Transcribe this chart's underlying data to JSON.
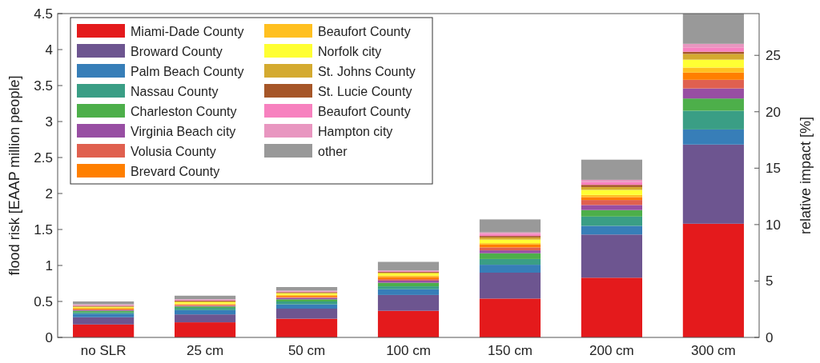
{
  "chart_data": {
    "type": "bar",
    "stacked": true,
    "ylabel": "flood risk [EAAP million people]",
    "y2label": "relative impact [%]",
    "categories": [
      "no SLR",
      "25 cm",
      "50 cm",
      "100 cm",
      "150 cm",
      "200 cm",
      "300 cm"
    ],
    "ylim": [
      0,
      4.5
    ],
    "yticks": [
      0,
      0.5,
      1,
      1.5,
      2,
      2.5,
      3,
      3.5,
      4,
      4.5
    ],
    "y2lim": [
      0,
      28.7
    ],
    "y2ticks": [
      0,
      5,
      10,
      15,
      20,
      25
    ],
    "legend": "top left",
    "grid": false,
    "series": [
      {
        "name": "Miami-Dade County",
        "color": "#e41a1c",
        "values": [
          0.18,
          0.21,
          0.26,
          0.37,
          0.54,
          0.83,
          1.58
        ]
      },
      {
        "name": "Broward County",
        "color": "#6d5590",
        "values": [
          0.1,
          0.11,
          0.14,
          0.22,
          0.36,
          0.6,
          1.1
        ]
      },
      {
        "name": "Palm Beach County",
        "color": "#377eb8",
        "values": [
          0.05,
          0.06,
          0.06,
          0.08,
          0.11,
          0.12,
          0.21
        ]
      },
      {
        "name": "Nassau County",
        "color": "#3a9e85",
        "values": [
          0.02,
          0.03,
          0.04,
          0.04,
          0.08,
          0.13,
          0.26
        ]
      },
      {
        "name": "Charleston County",
        "color": "#4daf4a",
        "values": [
          0.02,
          0.02,
          0.03,
          0.05,
          0.08,
          0.09,
          0.17
        ]
      },
      {
        "name": "Virginia Beach city",
        "color": "#984ea3",
        "values": [
          0.01,
          0.01,
          0.02,
          0.03,
          0.04,
          0.07,
          0.14
        ]
      },
      {
        "name": "Volusia County",
        "color": "#e0604f",
        "values": [
          0.01,
          0.01,
          0.01,
          0.02,
          0.04,
          0.07,
          0.12
        ]
      },
      {
        "name": "Brevard County",
        "color": "#ff7f00",
        "values": [
          0.01,
          0.01,
          0.02,
          0.03,
          0.04,
          0.04,
          0.1
        ]
      },
      {
        "name": "Beaufort County",
        "color": "#ffc020",
        "values": [
          0.01,
          0.01,
          0.01,
          0.02,
          0.02,
          0.03,
          0.07
        ]
      },
      {
        "name": "Norfolk city",
        "color": "#ffff33",
        "values": [
          0.01,
          0.02,
          0.02,
          0.03,
          0.05,
          0.07,
          0.11
        ]
      },
      {
        "name": "St. Johns County",
        "color": "#d4aa30",
        "values": [
          0.01,
          0.01,
          0.01,
          0.01,
          0.03,
          0.04,
          0.08
        ]
      },
      {
        "name": "St. Lucie County",
        "color": "#a65628",
        "values": [
          0.01,
          0.01,
          0.01,
          0.01,
          0.02,
          0.03,
          0.03
        ]
      },
      {
        "name": "Beaufort County",
        "color": "#f781bf",
        "values": [
          0.01,
          0.01,
          0.01,
          0.01,
          0.03,
          0.04,
          0.06
        ]
      },
      {
        "name": "Hampton city",
        "color": "#e896c0",
        "values": [
          0.01,
          0.01,
          0.01,
          0.01,
          0.02,
          0.03,
          0.05
        ]
      },
      {
        "name": "other",
        "color": "#999999",
        "values": [
          0.04,
          0.05,
          0.05,
          0.12,
          0.18,
          0.28,
          0.42
        ]
      }
    ]
  }
}
